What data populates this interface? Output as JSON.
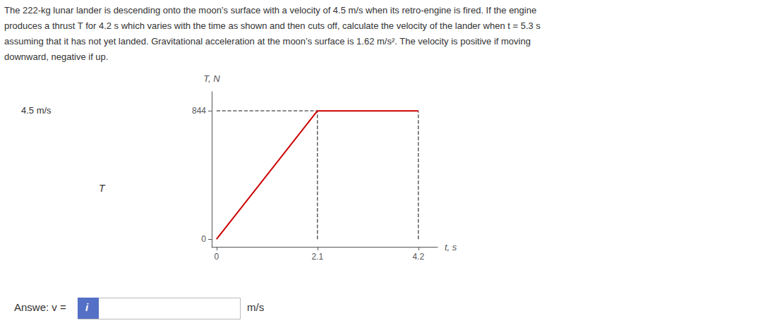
{
  "chart_data": {
    "type": "line",
    "text_lines": [
      "The 222-kg lunar lander is descending onto the moon’s surface with a velocity of 4.5 m/s when its retro-engine is fired. If the engine",
      "produces a thrust T for 4.2 s which varies with the time as shown and then cuts off, calculate the velocity of the lander when t = 5.3 s",
      "assuming that it has not yet landed. Gravitational acceleration at the moon’s surface is 1.62 m/s². The velocity is positive if moving",
      "downward, negative if up."
    ],
    "xlabel": "t, s",
    "ylabel": "T, N",
    "series": [
      {
        "x": [
          0,
          2.1,
          4.2
        ],
        "values": [
          0,
          844,
          844
        ],
        "color": "#cc0000",
        "line_style": "solid"
      },
      {
        "x": [
          0,
          2.1
        ],
        "values": [
          844,
          844
        ],
        "color": "#444444",
        "line_style": "dashed"
      },
      {
        "x": [
          2.1,
          2.1
        ],
        "values": [
          0,
          844
        ],
        "color": "#444444",
        "line_style": "dashed"
      },
      {
        "x": [
          4.2,
          4.2
        ],
        "values": [
          0,
          844
        ],
        "color": "#444444",
        "line_style": "dashed"
      }
    ],
    "xlim": [
      -0.1,
      4.6
    ],
    "ylim": [
      -50,
      970
    ],
    "xticks": [
      0,
      2.1,
      4.2
    ],
    "yticks": [
      0,
      844
    ],
    "grid": false,
    "annotations": [
      "4.5 m/s",
      "T"
    ],
    "answer_texts": [
      "Answe: v =",
      "i",
      "m/s"
    ]
  }
}
